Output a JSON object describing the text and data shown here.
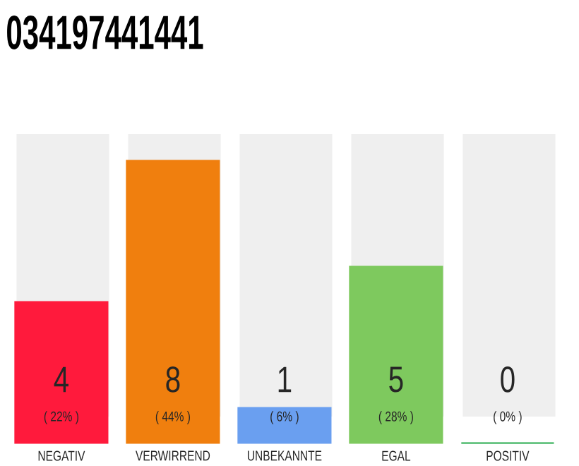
{
  "chart_data": {
    "type": "bar",
    "title": "034197441441",
    "categories": [
      "NEGATIV",
      "VERWIRREND",
      "UNBEKANNTE",
      "EGAL",
      "POSITIV"
    ],
    "values": [
      4,
      8,
      1,
      5,
      0
    ],
    "colors": [
      "#ff1a3c",
      "#f07f0e",
      "#6a9ff0",
      "#7ec95e",
      "#22a94a"
    ],
    "data_labels": true,
    "annotations": [
      "( 22% )",
      "( 44% )",
      "( 6% )",
      "( 28% )",
      "( 0% )"
    ]
  }
}
